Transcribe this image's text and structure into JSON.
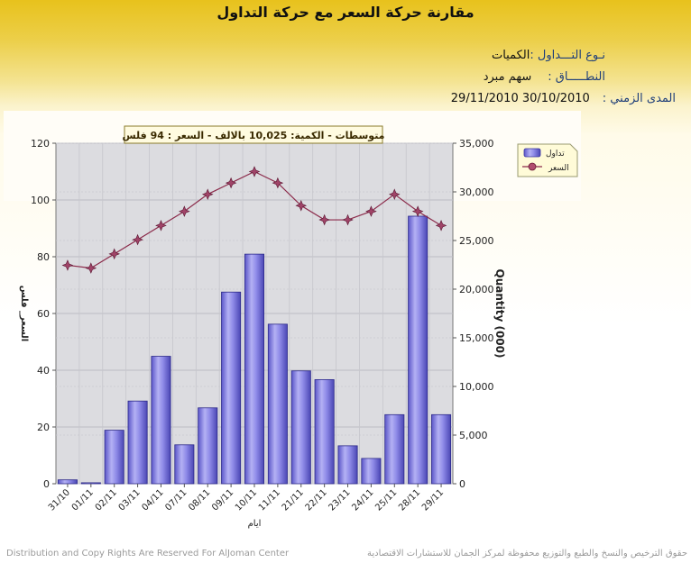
{
  "page": {
    "title": "مقارنة حركة السعر مع حركة التداول",
    "info": {
      "type_label": "نـوع التـــداول :",
      "type_value": "الكميات",
      "scope_label": "النطـــــاق :",
      "scope_value": "سهم   مبرد",
      "range_label": "المدى الزمني :",
      "range_value": "30/10/2010 29/11/2010"
    },
    "footer_left": "Distribution and Copy Rights Are Reserved For AlJoman Center",
    "footer_right": "حقوق الترخيص والنسخ والطبع والتوزيع محفوظة لمركز الجمان للاستشارات الاقتصادية"
  },
  "chart_data": {
    "type": "bar",
    "annotation": "متوسطات - الكمية: 10,025 بالالف  - السعر : 94 فلس",
    "categories": [
      "31/10",
      "01/11",
      "02/11",
      "03/11",
      "04/11",
      "07/11",
      "08/11",
      "09/11",
      "10/11",
      "11/11",
      "21/11",
      "22/11",
      "23/11",
      "24/11",
      "25/11",
      "28/11",
      "29/11"
    ],
    "series": [
      {
        "name": "تداول",
        "type": "bar",
        "axis": "right",
        "color": "#8a86e6",
        "values": [
          400,
          100,
          5500,
          8500,
          13100,
          4000,
          7800,
          19700,
          23600,
          16400,
          11600,
          10700,
          3900,
          2600,
          7100,
          27500,
          7100
        ]
      },
      {
        "name": "السعر",
        "type": "line",
        "axis": "left",
        "color": "#8b2a4a",
        "values": [
          77,
          76,
          81,
          86,
          91,
          96,
          102,
          106,
          110,
          106,
          98,
          93,
          93,
          96,
          102,
          96,
          91
        ]
      }
    ],
    "xlabel": "ايام",
    "ylabel_left": "السعر_ فلس",
    "ylabel_right": "Quantity (000)",
    "ylim_left": [
      0,
      120
    ],
    "ylim_right": [
      0,
      35000
    ],
    "yticks_left": [
      "0",
      "20",
      "40",
      "60",
      "80",
      "100",
      "120"
    ],
    "yticks_right": [
      "0",
      "5,000",
      "10,000",
      "15,000",
      "20,000",
      "25,000",
      "30,000",
      "35,000"
    ],
    "grid": true,
    "legend_position": "top-right"
  }
}
